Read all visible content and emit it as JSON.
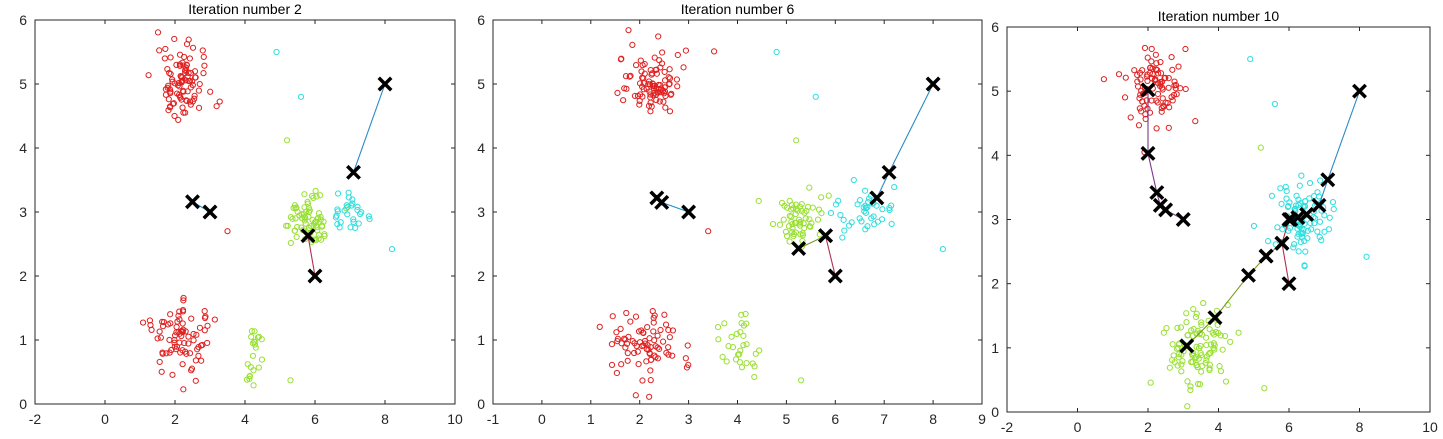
{
  "chart_data": [
    {
      "type": "scatter",
      "title": "Iteration number 2",
      "xlim": [
        -2,
        10
      ],
      "ylim": [
        0,
        6
      ],
      "xticks": [
        -2,
        0,
        2,
        4,
        6,
        8,
        10
      ],
      "yticks": [
        0,
        1,
        2,
        3,
        4,
        5,
        6
      ],
      "clusters": [
        {
          "color": "#e02020",
          "center": [
            2.2,
            5.0
          ],
          "spread": [
            0.7,
            0.35
          ],
          "n": 95
        },
        {
          "color": "#e02020",
          "center": [
            2.2,
            1.0
          ],
          "spread": [
            0.75,
            0.35
          ],
          "n": 80
        },
        {
          "color": "#99e033",
          "center": [
            4.2,
            0.9
          ],
          "spread": [
            0.35,
            0.35
          ],
          "n": 22
        },
        {
          "color": "#99e033",
          "center": [
            5.8,
            2.85
          ],
          "spread": [
            0.6,
            0.3
          ],
          "n": 70
        },
        {
          "color": "#2edede",
          "center": [
            7.0,
            3.0
          ],
          "spread": [
            0.45,
            0.25
          ],
          "n": 28
        }
      ],
      "outliers": [
        {
          "x": 4.9,
          "y": 5.5,
          "color": "#2edede"
        },
        {
          "x": 5.6,
          "y": 4.8,
          "color": "#2edede"
        },
        {
          "x": 5.2,
          "y": 4.12,
          "color": "#99e033"
        },
        {
          "x": 8.2,
          "y": 2.42,
          "color": "#2edede"
        },
        {
          "x": 5.3,
          "y": 0.37,
          "color": "#99e033"
        },
        {
          "x": 3.5,
          "y": 2.7,
          "color": "#e02020"
        }
      ],
      "centroid_paths": [
        {
          "color": "#2a8ac8",
          "points": [
            [
              8.0,
              5.0
            ],
            [
              7.1,
              3.62
            ]
          ]
        },
        {
          "color": "#1e90c8",
          "points": [
            [
              2.5,
              3.16
            ],
            [
              3.0,
              3.0
            ]
          ]
        },
        {
          "color": "#b03050",
          "points": [
            [
              6.0,
              2.0
            ],
            [
              5.8,
              2.63
            ]
          ]
        }
      ]
    },
    {
      "type": "scatter",
      "title": "Iteration number 6",
      "xlim": [
        -1,
        9
      ],
      "ylim": [
        0,
        6
      ],
      "xticks": [
        -1,
        0,
        1,
        2,
        3,
        4,
        5,
        6,
        7,
        8,
        9
      ],
      "yticks": [
        0,
        1,
        2,
        3,
        4,
        5,
        6
      ],
      "clusters": [
        {
          "color": "#e02020",
          "center": [
            2.2,
            5.0
          ],
          "spread": [
            0.7,
            0.35
          ],
          "n": 95
        },
        {
          "color": "#e02020",
          "center": [
            2.2,
            1.0
          ],
          "spread": [
            0.7,
            0.35
          ],
          "n": 80
        },
        {
          "color": "#99e033",
          "center": [
            4.0,
            0.9
          ],
          "spread": [
            0.45,
            0.35
          ],
          "n": 30
        },
        {
          "color": "#99e033",
          "center": [
            5.3,
            2.85
          ],
          "spread": [
            0.55,
            0.3
          ],
          "n": 60
        },
        {
          "color": "#2edede",
          "center": [
            6.6,
            3.0
          ],
          "spread": [
            0.55,
            0.25
          ],
          "n": 40
        }
      ],
      "outliers": [
        {
          "x": 4.8,
          "y": 5.5,
          "color": "#2edede"
        },
        {
          "x": 5.6,
          "y": 4.8,
          "color": "#2edede"
        },
        {
          "x": 5.2,
          "y": 4.12,
          "color": "#99e033"
        },
        {
          "x": 8.2,
          "y": 2.42,
          "color": "#2edede"
        },
        {
          "x": 5.3,
          "y": 0.37,
          "color": "#99e033"
        },
        {
          "x": 3.4,
          "y": 2.7,
          "color": "#e02020"
        }
      ],
      "centroid_paths": [
        {
          "color": "#2a8ac8",
          "points": [
            [
              8.0,
              5.0
            ],
            [
              7.1,
              3.62
            ],
            [
              6.85,
              3.22
            ]
          ]
        },
        {
          "color": "#1e90c8",
          "points": [
            [
              2.35,
              3.22
            ],
            [
              2.45,
              3.15
            ],
            [
              3.0,
              3.0
            ]
          ]
        },
        {
          "color": "#b03050",
          "points": [
            [
              6.0,
              2.0
            ],
            [
              5.8,
              2.63
            ]
          ]
        },
        {
          "color": "#7a9a20",
          "points": [
            [
              5.8,
              2.63
            ],
            [
              5.25,
              2.43
            ]
          ]
        }
      ]
    },
    {
      "type": "scatter",
      "title": "Iteration number 10",
      "xlim": [
        -2,
        10
      ],
      "ylim": [
        0,
        6
      ],
      "xticks": [
        -2,
        0,
        2,
        4,
        6,
        8,
        10
      ],
      "yticks": [
        0,
        1,
        2,
        3,
        4,
        5,
        6
      ],
      "clusters": [
        {
          "color": "#e02020",
          "center": [
            2.2,
            5.0
          ],
          "spread": [
            0.7,
            0.35
          ],
          "n": 95
        },
        {
          "color": "#99e033",
          "center": [
            3.4,
            1.0
          ],
          "spread": [
            0.8,
            0.4
          ],
          "n": 100
        },
        {
          "color": "#2edede",
          "center": [
            6.3,
            3.0
          ],
          "spread": [
            0.7,
            0.3
          ],
          "n": 95
        }
      ],
      "outliers": [
        {
          "x": 4.9,
          "y": 5.5,
          "color": "#2edede"
        },
        {
          "x": 5.6,
          "y": 4.8,
          "color": "#2edede"
        },
        {
          "x": 5.2,
          "y": 4.12,
          "color": "#99e033"
        },
        {
          "x": 8.2,
          "y": 2.42,
          "color": "#2edede"
        },
        {
          "x": 5.3,
          "y": 0.37,
          "color": "#99e033"
        },
        {
          "x": 1.9,
          "y": 4.05,
          "color": "#e02020"
        }
      ],
      "centroid_paths": [
        {
          "color": "#2a8ac8",
          "points": [
            [
              8.0,
              5.0
            ],
            [
              7.1,
              3.62
            ],
            [
              6.85,
              3.22
            ],
            [
              6.5,
              3.08
            ],
            [
              6.25,
              3.03
            ],
            [
              6.05,
              3.0
            ]
          ]
        },
        {
          "color": "#7a3a8a",
          "points": [
            [
              2.0,
              5.02
            ],
            [
              2.0,
              4.03
            ],
            [
              2.25,
              3.42
            ],
            [
              2.35,
              3.22
            ],
            [
              2.5,
              3.15
            ],
            [
              3.0,
              3.0
            ]
          ]
        },
        {
          "color": "#b03050",
          "points": [
            [
              6.0,
              2.0
            ],
            [
              5.8,
              2.63
            ],
            [
              6.0,
              3.0
            ]
          ]
        },
        {
          "color": "#7a9a20",
          "points": [
            [
              5.35,
              2.43
            ],
            [
              4.85,
              2.13
            ],
            [
              3.9,
              1.47
            ],
            [
              3.1,
              1.03
            ]
          ]
        },
        {
          "color": "#7a9a20",
          "points": [
            [
              5.8,
              2.63
            ],
            [
              5.35,
              2.43
            ]
          ]
        }
      ]
    }
  ]
}
